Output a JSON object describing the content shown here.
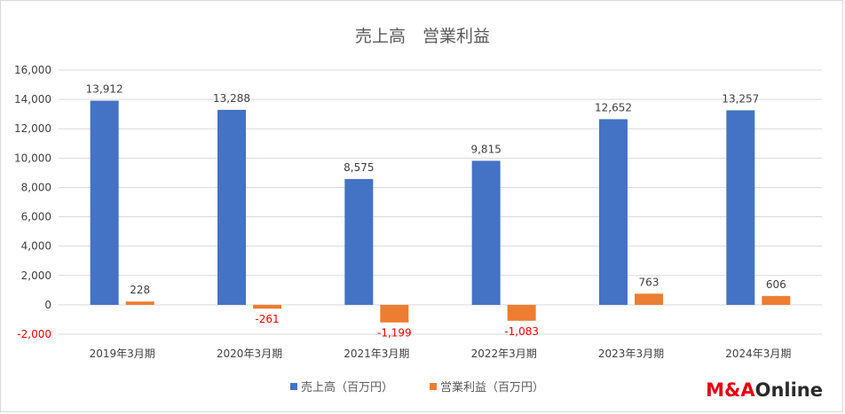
{
  "chart_data": {
    "type": "bar",
    "title": "売上高　営業利益",
    "categories": [
      "2019年3月期",
      "2020年3月期",
      "2021年3月期",
      "2022年3月期",
      "2023年3月期",
      "2024年3月期"
    ],
    "series": [
      {
        "name": "売上高（百万円）",
        "color": "#4472c4",
        "values": [
          13912,
          13288,
          8575,
          9815,
          12652,
          13257
        ]
      },
      {
        "name": "営業利益（百万円）",
        "color": "#ed7d31",
        "values": [
          228,
          -261,
          -1199,
          -1083,
          763,
          606
        ]
      }
    ],
    "data_labels": {
      "sales": [
        "13,912",
        "13,288",
        "8,575",
        "9,815",
        "12,652",
        "13,257"
      ],
      "profit": [
        "228",
        "-261",
        "-1,199",
        "-1,083",
        "763",
        "606"
      ]
    },
    "negative_label_color": "#ff0000",
    "ylim": [
      -2000,
      16000
    ],
    "yticks": [
      -2000,
      0,
      2000,
      4000,
      6000,
      8000,
      10000,
      12000,
      14000,
      16000
    ],
    "ytick_labels": [
      "-2,000",
      "0",
      "2,000",
      "4,000",
      "6,000",
      "8,000",
      "10,000",
      "12,000",
      "14,000",
      "16,000"
    ],
    "grid": true,
    "legend_position": "bottom"
  },
  "logo": {
    "part1": "M&A",
    "part2": "Online",
    "color1": "#e60012",
    "color2": "#2b2b2b"
  }
}
